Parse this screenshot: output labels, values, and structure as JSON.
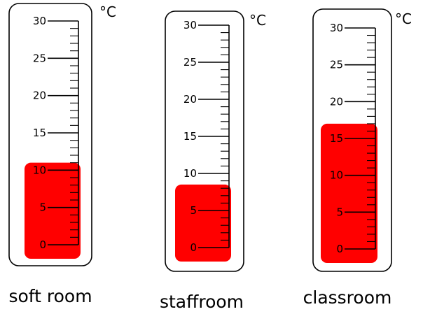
{
  "chart_data": {
    "type": "bar",
    "unit": "°C",
    "ylim": [
      0,
      30
    ],
    "ticks": [
      0,
      5,
      10,
      15,
      20,
      25,
      30
    ],
    "fill_color": "#ff0000",
    "thermometers": [
      {
        "label": "soft room",
        "value": 11
      },
      {
        "label": "staffroom",
        "value": 8.5
      },
      {
        "label": "classroom",
        "value": 17
      }
    ]
  }
}
